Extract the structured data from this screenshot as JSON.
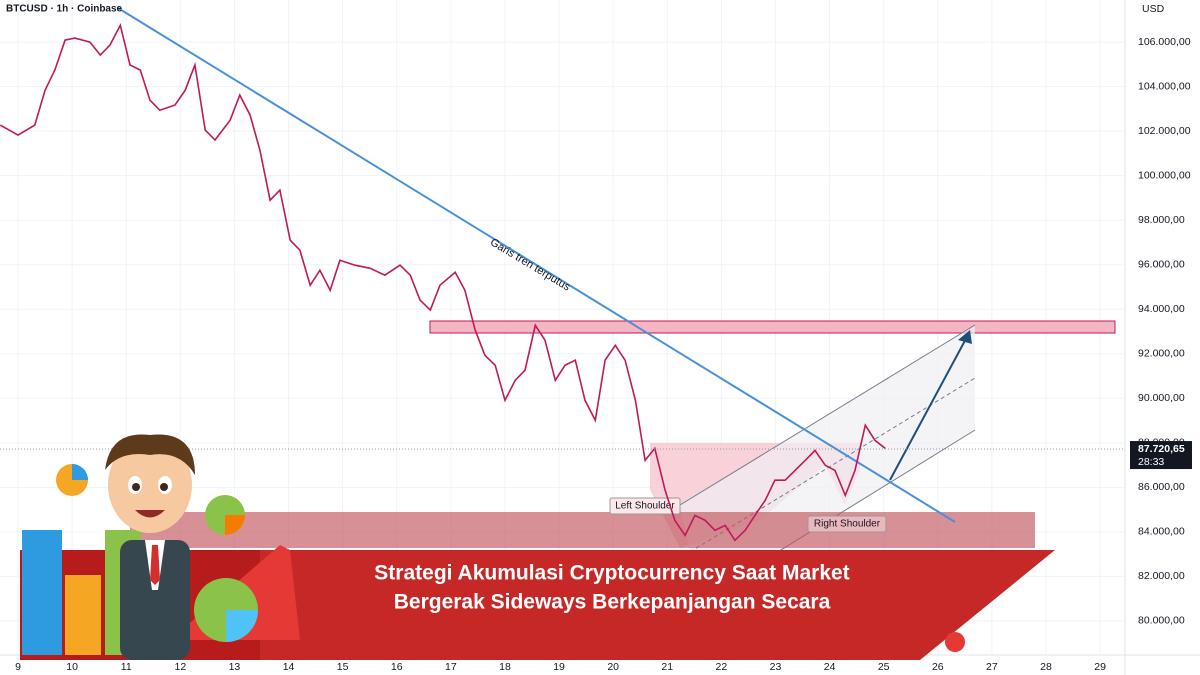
{
  "chart_data": {
    "type": "line",
    "title": "BTCUSD · 1h · Coinbase",
    "currency": "USD",
    "x": [
      8.67,
      9.0,
      9.31,
      9.5,
      9.68,
      9.87,
      10.05,
      10.33,
      10.52,
      10.7,
      10.89,
      11.07,
      11.26,
      11.44,
      11.62,
      11.9,
      12.09,
      12.27,
      12.46,
      12.64,
      12.92,
      13.1,
      13.29,
      13.47,
      13.66,
      13.84,
      14.03,
      14.21,
      14.4,
      14.58,
      14.77,
      14.95,
      15.23,
      15.51,
      15.78,
      16.06,
      16.25,
      16.43,
      16.62,
      16.8,
      17.08,
      17.26,
      17.45,
      17.63,
      17.82,
      18.0,
      18.19,
      18.37,
      18.56,
      18.74,
      18.93,
      19.11,
      19.3,
      19.48,
      19.67,
      19.85,
      20.04,
      20.22,
      20.41,
      20.59,
      20.77,
      20.96,
      21.14,
      21.33,
      21.51,
      21.7,
      21.88,
      22.07,
      22.25,
      22.44,
      22.62,
      22.81,
      22.99,
      23.18,
      23.36,
      23.55,
      23.73,
      23.92,
      24.1,
      24.29,
      24.47,
      24.66,
      24.84,
      25.03
    ],
    "series": [
      {
        "color": "#c2185b",
        "values": [
          102270,
          101820,
          102270,
          103840,
          104740,
          106090,
          106180,
          106000,
          105420,
          105870,
          106760,
          104970,
          104740,
          103390,
          102940,
          103170,
          103840,
          104970,
          102050,
          101600,
          102490,
          103620,
          102720,
          101150,
          98900,
          99350,
          97100,
          96650,
          95080,
          95750,
          94850,
          96200,
          95980,
          95840,
          95530,
          95980,
          95530,
          94410,
          93960,
          95080,
          95660,
          94850,
          93060,
          91930,
          91480,
          89910,
          90810,
          91260,
          93280,
          92610,
          90810,
          91480,
          91710,
          89910,
          89010,
          91710,
          92380,
          91710,
          89910,
          87210,
          87750,
          85870,
          84520,
          83840,
          84740,
          84520,
          84070,
          84290,
          83620,
          84070,
          84740,
          85420,
          86320,
          86320,
          86760,
          87210,
          87660,
          86990,
          86760,
          85640,
          86760,
          88790,
          88110,
          87750
        ]
      }
    ],
    "last_price": {
      "value": 87720.65,
      "label": "87.720,65"
    },
    "countdown": "28:33",
    "xlim": [
      8.667,
      29.46
    ],
    "ylim": [
      78470,
      107890
    ],
    "xticks": [
      9,
      10,
      11,
      12,
      13,
      14,
      15,
      16,
      17,
      18,
      19,
      20,
      21,
      22,
      23,
      24,
      25,
      26,
      27,
      28,
      29
    ],
    "yticks": [
      {
        "value": 80000,
        "label": "80.000,00"
      },
      {
        "value": 82000,
        "label": "82.000,00"
      },
      {
        "value": 84000,
        "label": "84.000,00"
      },
      {
        "value": 86000,
        "label": "86.000,00"
      },
      {
        "value": 88000,
        "label": "88.000,00"
      },
      {
        "value": 90000,
        "label": "90.000,00"
      },
      {
        "value": 92000,
        "label": "92.000,00"
      },
      {
        "value": 94000,
        "label": "94.000,00"
      },
      {
        "value": 96000,
        "label": "96.000,00"
      },
      {
        "value": 98000,
        "label": "98.000,00"
      },
      {
        "value": 100000,
        "label": "100.000,00"
      },
      {
        "value": 102000,
        "label": "102.000,00"
      },
      {
        "value": 104000,
        "label": "104.000,00"
      },
      {
        "value": 106000,
        "label": "106.000,00"
      }
    ],
    "annotations": [
      "Garis tren terputus",
      "Left Shoulder",
      "Right Shoulder"
    ],
    "banner": [
      "Strategi Akumulasi Cryptocurrency Saat Market",
      "Bergerak Sideways Berkepanjangan Secara"
    ]
  }
}
